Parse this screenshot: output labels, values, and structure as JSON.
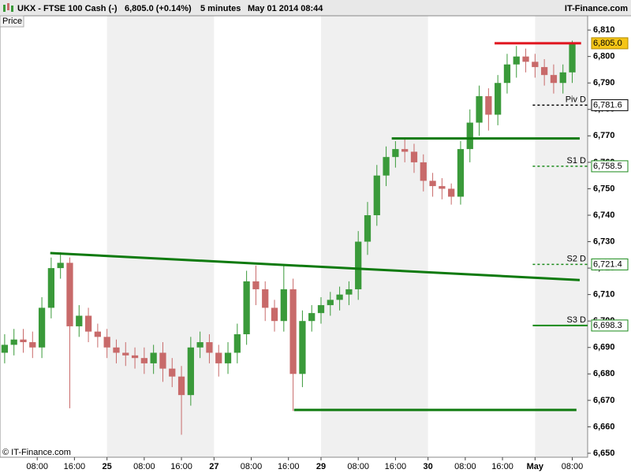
{
  "header": {
    "symbol": "UKX - FTSE 100 Cash (-)",
    "quote": "6,805.0 (+0.14%)",
    "interval": "5 minutes",
    "datetime": "May 01 2014 08:44",
    "brand": "IT-Finance.com"
  },
  "footer": "© IT-Finance.com",
  "chart_data": {
    "type": "candlestick",
    "y_label": "Price",
    "up_color": "#3a9a3a",
    "down_color": "#c86a6a",
    "xlim": [
      0,
      126.3
    ],
    "xticks": [
      {
        "value": 8,
        "label": "08:00"
      },
      {
        "value": 16,
        "label": "16:00"
      },
      {
        "value": 23,
        "label": "25"
      },
      {
        "value": 31,
        "label": "08:00"
      },
      {
        "value": 39,
        "label": "16:00"
      },
      {
        "value": 46,
        "label": "27"
      },
      {
        "value": 54,
        "label": "08:00"
      },
      {
        "value": 62,
        "label": "16:00"
      },
      {
        "value": 69,
        "label": "29"
      },
      {
        "value": 77,
        "label": "08:00"
      },
      {
        "value": 85,
        "label": "16:00"
      },
      {
        "value": 92,
        "label": "30"
      },
      {
        "value": 100,
        "label": "08:00"
      },
      {
        "value": 108,
        "label": "16:00"
      },
      {
        "value": 115,
        "label": "May"
      },
      {
        "value": 123,
        "label": "08:00"
      }
    ],
    "ylim": [
      6648.5,
      6815.4
    ],
    "yticks": [
      {
        "value": 6650,
        "label": "6,650"
      },
      {
        "value": 6660,
        "label": "6,660"
      },
      {
        "value": 6670,
        "label": "6,670"
      },
      {
        "value": 6680,
        "label": "6,680"
      },
      {
        "value": 6690,
        "label": "6,690"
      },
      {
        "value": 6700,
        "label": "6,700"
      },
      {
        "value": 6710,
        "label": "6,710"
      },
      {
        "value": 6720,
        "label": "6,720"
      },
      {
        "value": 6730,
        "label": "6,730"
      },
      {
        "value": 6740,
        "label": "6,740"
      },
      {
        "value": 6750,
        "label": "6,750"
      },
      {
        "value": 6760,
        "label": "6,760"
      },
      {
        "value": 6770,
        "label": "6,770"
      },
      {
        "value": 6780,
        "label": "6,780"
      },
      {
        "value": 6790,
        "label": "6,790"
      },
      {
        "value": 6800,
        "label": "6,800"
      },
      {
        "value": 6810,
        "label": "6,810"
      }
    ],
    "x": [
      1,
      3,
      5,
      7,
      9,
      11,
      13,
      15,
      17,
      19,
      21,
      23,
      25,
      27,
      29,
      31,
      33,
      35,
      37,
      39,
      41,
      43,
      45,
      47,
      49,
      51,
      53,
      55,
      57,
      59,
      61,
      63,
      65,
      67,
      69,
      71,
      73,
      75,
      77,
      79,
      81,
      83,
      85,
      87,
      89,
      91,
      93,
      95,
      97,
      99,
      101,
      103,
      105,
      107,
      109,
      111,
      113,
      115,
      117,
      119,
      121,
      123
    ],
    "open": [
      6688,
      6691,
      6693,
      6692,
      6690,
      6705,
      6720,
      6722,
      6698,
      6702,
      6696,
      6694,
      6690,
      6688,
      6687,
      6686,
      6684,
      6688,
      6682,
      6679,
      6672,
      6690,
      6692,
      6688,
      6684,
      6688,
      6695,
      6715,
      6712,
      6705,
      6700,
      6712,
      6680,
      6700,
      6703,
      6706,
      6708,
      6710,
      6712,
      6730,
      6740,
      6755,
      6762,
      6765,
      6764,
      6760,
      6753,
      6751,
      6750,
      6747,
      6765,
      6775,
      6785,
      6778,
      6790,
      6797,
      6800,
      6798,
      6796,
      6793,
      6790,
      6794
    ],
    "high": [
      6695,
      6697,
      6697,
      6696,
      6709,
      6724,
      6726,
      6724,
      6706,
      6705,
      6699,
      6697,
      6693,
      6692,
      6690,
      6690,
      6691,
      6692,
      6686,
      6683,
      6694,
      6696,
      6695,
      6691,
      6692,
      6699,
      6719,
      6721,
      6715,
      6708,
      6721,
      6716,
      6704,
      6706,
      6709,
      6711,
      6713,
      6715,
      6734,
      6745,
      6759,
      6766,
      6768,
      6769,
      6767,
      6763,
      6756,
      6754,
      6752,
      6768,
      6780,
      6789,
      6788,
      6793,
      6801,
      6804,
      6803,
      6801,
      6799,
      6797,
      6797,
      6806
    ],
    "low": [
      6684,
      6687,
      6688,
      6686,
      6686,
      6701,
      6716,
      6667,
      6694,
      6692,
      6690,
      6686,
      6684,
      6683,
      6682,
      6680,
      6680,
      6677,
      6675,
      6657,
      6668,
      6686,
      6684,
      6679,
      6680,
      6684,
      6691,
      6706,
      6700,
      6696,
      6696,
      6666,
      6675,
      6696,
      6699,
      6702,
      6704,
      6706,
      6708,
      6725,
      6736,
      6751,
      6758,
      6760,
      6756,
      6749,
      6747,
      6746,
      6744,
      6744,
      6760,
      6770,
      6772,
      6774,
      6786,
      6792,
      6794,
      6792,
      6789,
      6786,
      6786,
      6790
    ],
    "close": [
      6691,
      6693,
      6692,
      6690,
      6705,
      6720,
      6722,
      6698,
      6702,
      6696,
      6694,
      6690,
      6688,
      6687,
      6686,
      6684,
      6688,
      6682,
      6679,
      6672,
      6690,
      6692,
      6688,
      6684,
      6688,
      6695,
      6715,
      6712,
      6705,
      6700,
      6712,
      6680,
      6700,
      6703,
      6706,
      6708,
      6710,
      6712,
      6730,
      6740,
      6755,
      6762,
      6765,
      6764,
      6760,
      6753,
      6751,
      6750,
      6747,
      6765,
      6775,
      6785,
      6778,
      6790,
      6797,
      6800,
      6798,
      6796,
      6793,
      6790,
      6794,
      6805
    ],
    "last": {
      "value": 6805.0,
      "label": "6,805.0",
      "color": "#f5c518"
    },
    "levels": [
      {
        "name": "Piv D",
        "value": 6781.6,
        "label": "6,781.6",
        "color": "#000000",
        "dash": true,
        "x": [
          114.5,
          126.3
        ]
      },
      {
        "name": "S1 D",
        "value": 6758.5,
        "label": "6,758.5",
        "color": "#1a8a1a",
        "dash": true,
        "x": [
          114.5,
          126.3
        ]
      },
      {
        "name": "S2 D",
        "value": 6721.4,
        "label": "6,721.4",
        "color": "#1a8a1a",
        "dash": true,
        "x": [
          114.5,
          126.3
        ]
      },
      {
        "name": "S3 D",
        "value": 6698.3,
        "label": "6,698.3",
        "color": "#1a8a1a",
        "dash": false,
        "x": [
          114.5,
          126.3
        ]
      }
    ],
    "trend_lines": [
      {
        "color": "#e0141e",
        "x": [
          106.3,
          124.9
        ],
        "y": [
          6805,
          6805
        ]
      },
      {
        "color": "#0e7a0e",
        "x": [
          84.2,
          124.6
        ],
        "y": [
          6769,
          6769
        ]
      },
      {
        "color": "#0e7a0e",
        "x": [
          10.8,
          124.6
        ],
        "y": [
          6725.7,
          6715.5
        ]
      },
      {
        "color": "#0e7a0e",
        "x": [
          63.2,
          123.9
        ],
        "y": [
          6666.4,
          6666.4
        ]
      }
    ],
    "shade_color": "#f0f0f0"
  }
}
